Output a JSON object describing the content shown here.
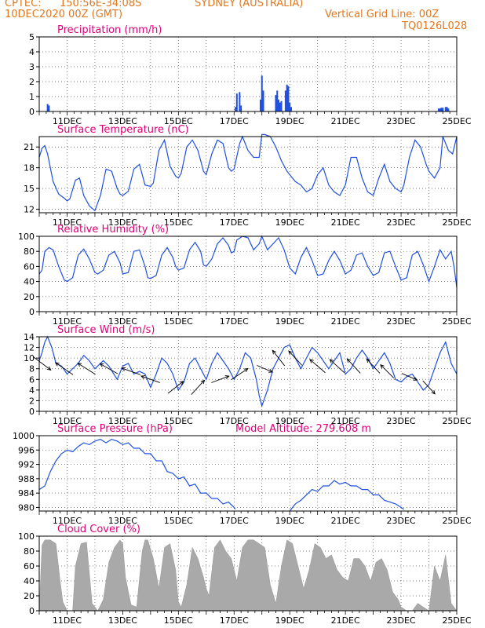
{
  "header": {
    "source": "CPTEC:",
    "coords": "150:56E-34:08S",
    "location": "SYDNEY (AUSTRALIA)",
    "date": "10DEC2020 00Z (GMT)",
    "grid_note": "Vertical Grid Line: 00Z",
    "code": "TQ0126L028"
  },
  "model_altitude": "Model Altitude: 279.608 m",
  "colors": {
    "header": "#e07820",
    "title": "#e0007a",
    "series": "#1f4fe0",
    "cloud": "#a9a9a9"
  },
  "x_ticks": [
    "11DEC",
    "13DEC",
    "15DEC",
    "17DEC",
    "19DEC",
    "21DEC",
    "23DEC",
    "25DEC"
  ],
  "chart_data": [
    {
      "type": "bar",
      "title": "Precipitation (mm/h)",
      "ylim": [
        0,
        5
      ],
      "yticks": [
        0,
        1,
        2,
        3,
        4,
        5
      ],
      "xlim": [
        10.0,
        25.0
      ],
      "x": [
        10.3,
        10.35,
        17.05,
        17.1,
        17.2,
        17.25,
        17.95,
        18.0,
        18.05,
        18.5,
        18.55,
        18.6,
        18.65,
        18.7,
        18.85,
        18.9,
        18.95,
        19.0,
        19.05,
        24.35,
        24.4,
        24.45,
        24.5,
        24.6,
        24.65,
        24.7
      ],
      "values": [
        0.5,
        0.4,
        0.3,
        1.2,
        1.3,
        0.4,
        0.8,
        2.4,
        1.4,
        1.1,
        1.4,
        0.8,
        0.6,
        0.7,
        1.4,
        1.8,
        1.7,
        0.6,
        0.3,
        0.2,
        0.2,
        0.25,
        0.25,
        0.3,
        0.3,
        0.2
      ],
      "grid": true
    },
    {
      "type": "line",
      "title": "Surface Temperature (nC)",
      "ylim": [
        11.5,
        22.5
      ],
      "yticks": [
        12,
        15,
        18,
        21
      ],
      "xlim": [
        10.0,
        25.0
      ],
      "x": [
        10.0,
        10.1,
        10.2,
        10.3,
        10.5,
        10.7,
        10.9,
        11.0,
        11.1,
        11.3,
        11.45,
        11.6,
        11.8,
        12.0,
        12.2,
        12.4,
        12.6,
        12.8,
        12.9,
        13.0,
        13.2,
        13.4,
        13.6,
        13.8,
        14.0,
        14.1,
        14.3,
        14.5,
        14.7,
        14.9,
        15.0,
        15.1,
        15.3,
        15.5,
        15.7,
        15.9,
        16.0,
        16.2,
        16.4,
        16.6,
        16.8,
        16.9,
        17.0,
        17.2,
        17.3,
        17.5,
        17.7,
        17.9,
        18.0,
        18.1,
        18.3,
        18.5,
        18.7,
        18.9,
        19.0,
        19.2,
        19.4,
        19.6,
        19.8,
        20.0,
        20.2,
        20.4,
        20.6,
        20.8,
        21.0,
        21.2,
        21.4,
        21.6,
        21.8,
        22.0,
        22.2,
        22.4,
        22.6,
        22.8,
        23.0,
        23.1,
        23.3,
        23.5,
        23.7,
        23.9,
        24.0,
        24.2,
        24.4,
        24.5,
        24.7,
        24.85,
        25.0
      ],
      "y": [
        19.5,
        20.8,
        21.2,
        20.0,
        16.0,
        14.2,
        13.6,
        13.2,
        13.5,
        16.2,
        16.5,
        14.0,
        12.5,
        11.8,
        14.0,
        17.8,
        17.5,
        15.0,
        14.2,
        14.0,
        14.6,
        17.8,
        18.5,
        15.5,
        15.3,
        15.8,
        20.5,
        22.0,
        18.2,
        16.8,
        16.5,
        17.2,
        21.0,
        22.0,
        20.5,
        17.5,
        17.0,
        20.0,
        22.0,
        21.5,
        18.0,
        17.5,
        17.8,
        21.5,
        22.5,
        20.5,
        19.5,
        19.5,
        22.8,
        22.8,
        22.5,
        21.0,
        19.0,
        17.5,
        17.0,
        16.0,
        15.5,
        14.5,
        15.0,
        17.0,
        18.0,
        15.5,
        14.5,
        14.0,
        15.5,
        19.5,
        19.5,
        16.5,
        14.5,
        14.0,
        16.5,
        18.5,
        16.0,
        15.0,
        14.5,
        15.5,
        19.5,
        22.0,
        21.0,
        18.5,
        17.5,
        16.5,
        18.0,
        22.5,
        20.5,
        20.0,
        22.5
      ],
      "grid": true
    },
    {
      "type": "line",
      "title": "Relative Humidity (%)",
      "ylim": [
        0,
        100
      ],
      "yticks": [
        0,
        20,
        40,
        60,
        80,
        100
      ],
      "xlim": [
        10.0,
        25.0
      ],
      "x": [
        10.0,
        10.1,
        10.2,
        10.35,
        10.5,
        10.7,
        10.9,
        11.0,
        11.2,
        11.4,
        11.6,
        11.8,
        12.0,
        12.1,
        12.3,
        12.5,
        12.7,
        12.9,
        13.0,
        13.2,
        13.4,
        13.6,
        13.8,
        13.9,
        14.0,
        14.2,
        14.4,
        14.6,
        14.8,
        14.9,
        15.0,
        15.2,
        15.4,
        15.6,
        15.8,
        15.9,
        16.0,
        16.2,
        16.4,
        16.6,
        16.8,
        16.9,
        17.0,
        17.1,
        17.3,
        17.5,
        17.7,
        17.9,
        18.0,
        18.2,
        18.4,
        18.6,
        18.8,
        19.0,
        19.2,
        19.4,
        19.6,
        19.8,
        20.0,
        20.2,
        20.4,
        20.6,
        20.8,
        21.0,
        21.2,
        21.4,
        21.6,
        21.8,
        22.0,
        22.2,
        22.4,
        22.6,
        22.8,
        23.0,
        23.2,
        23.4,
        23.6,
        23.8,
        24.0,
        24.2,
        24.4,
        24.6,
        24.8,
        24.9,
        25.0
      ],
      "y": [
        50,
        55,
        80,
        85,
        82,
        60,
        42,
        40,
        45,
        75,
        83,
        70,
        52,
        50,
        55,
        75,
        80,
        65,
        50,
        52,
        80,
        82,
        60,
        45,
        44,
        48,
        75,
        85,
        72,
        60,
        55,
        58,
        82,
        92,
        80,
        62,
        60,
        70,
        90,
        98,
        88,
        78,
        80,
        95,
        100,
        98,
        82,
        90,
        100,
        82,
        90,
        98,
        82,
        58,
        50,
        72,
        85,
        68,
        48,
        50,
        68,
        80,
        68,
        50,
        55,
        75,
        78,
        60,
        48,
        52,
        78,
        80,
        60,
        42,
        45,
        75,
        80,
        62,
        40,
        60,
        82,
        70,
        80,
        60,
        32
      ],
      "grid": true
    },
    {
      "type": "line",
      "title": "Surface Wind (m/s)",
      "ylim": [
        0,
        14
      ],
      "yticks": [
        0,
        2,
        4,
        6,
        8,
        10,
        12,
        14
      ],
      "xlim": [
        10.0,
        25.0
      ],
      "x": [
        10.0,
        10.1,
        10.2,
        10.3,
        10.45,
        10.6,
        10.8,
        11.0,
        11.2,
        11.4,
        11.6,
        11.8,
        12.0,
        12.3,
        12.5,
        12.8,
        13.0,
        13.2,
        13.4,
        13.6,
        13.8,
        14.0,
        14.2,
        14.4,
        14.6,
        14.8,
        15.0,
        15.2,
        15.4,
        15.6,
        15.8,
        16.0,
        16.2,
        16.4,
        16.6,
        16.8,
        17.0,
        17.2,
        17.4,
        17.6,
        17.8,
        17.9,
        18.0,
        18.2,
        18.4,
        18.6,
        18.8,
        19.0,
        19.2,
        19.4,
        19.6,
        19.8,
        20.0,
        20.2,
        20.4,
        20.6,
        20.8,
        21.0,
        21.2,
        21.4,
        21.6,
        21.8,
        22.0,
        22.2,
        22.4,
        22.6,
        22.8,
        23.0,
        23.2,
        23.4,
        23.6,
        23.8,
        24.0,
        24.2,
        24.4,
        24.6,
        24.8,
        25.0
      ],
      "y": [
        9.5,
        11.0,
        13.0,
        14.0,
        12.0,
        9.0,
        8.5,
        7.0,
        8.0,
        9.0,
        10.5,
        9.5,
        8.0,
        9.5,
        8.5,
        6.0,
        8.5,
        9.0,
        7.0,
        7.5,
        7.0,
        4.5,
        7.0,
        10.0,
        9.0,
        7.0,
        4.0,
        5.5,
        9.0,
        10.0,
        8.0,
        6.0,
        9.0,
        11.0,
        9.5,
        8.0,
        6.0,
        8.0,
        11.0,
        10.0,
        6.0,
        3.0,
        1.0,
        4.0,
        8.0,
        10.0,
        12.0,
        12.5,
        10.0,
        8.0,
        10.0,
        12.0,
        11.0,
        9.5,
        8.0,
        9.5,
        11.0,
        7.0,
        8.0,
        10.0,
        11.5,
        10.0,
        8.0,
        9.5,
        11.0,
        9.0,
        6.0,
        5.5,
        6.5,
        7.0,
        5.5,
        4.0,
        5.0,
        8.0,
        11.0,
        13.0,
        9.0,
        7.0
      ],
      "vectors": [
        {
          "x": 10.1,
          "y": 9.0,
          "u": 0.8,
          "v": -0.6
        },
        {
          "x": 10.9,
          "y": 8.0,
          "u": -0.8,
          "v": 0.55
        },
        {
          "x": 11.7,
          "y": 8.0,
          "u": -0.8,
          "v": 0.5
        },
        {
          "x": 12.5,
          "y": 8.0,
          "u": -0.8,
          "v": 0.45
        },
        {
          "x": 13.3,
          "y": 7.5,
          "u": -0.85,
          "v": 0.3
        },
        {
          "x": 14.0,
          "y": 6.0,
          "u": -0.85,
          "v": 0.3
        },
        {
          "x": 14.9,
          "y": 4.5,
          "u": 0.7,
          "v": 0.55
        },
        {
          "x": 15.7,
          "y": 4.5,
          "u": 0.6,
          "v": 0.65
        },
        {
          "x": 16.5,
          "y": 6.0,
          "u": 0.8,
          "v": 0.3
        },
        {
          "x": 17.2,
          "y": 7.0,
          "u": 0.75,
          "v": 0.5
        },
        {
          "x": 18.1,
          "y": 8.0,
          "u": 0.7,
          "v": -0.3
        },
        {
          "x": 18.6,
          "y": 10.0,
          "u": -0.55,
          "v": 0.7
        },
        {
          "x": 19.2,
          "y": 10.0,
          "u": -0.6,
          "v": 0.65
        },
        {
          "x": 20.0,
          "y": 8.5,
          "u": -0.7,
          "v": 0.6
        },
        {
          "x": 20.7,
          "y": 8.5,
          "u": -0.65,
          "v": 0.6
        },
        {
          "x": 21.3,
          "y": 8.5,
          "u": -0.6,
          "v": 0.65
        },
        {
          "x": 22.0,
          "y": 8.5,
          "u": -0.6,
          "v": 0.65
        },
        {
          "x": 22.5,
          "y": 7.5,
          "u": -0.6,
          "v": 0.6
        },
        {
          "x": 23.3,
          "y": 6.5,
          "u": 0.7,
          "v": -0.3
        },
        {
          "x": 24.0,
          "y": 4.5,
          "u": 0.55,
          "v": -0.6
        }
      ],
      "grid": true
    },
    {
      "type": "line",
      "title": "Surface Pressure (hPa)",
      "ylim": [
        979,
        1000
      ],
      "yticks": [
        980,
        984,
        988,
        992,
        996,
        1000
      ],
      "xlim": [
        10.0,
        25.0
      ],
      "x": [
        10.0,
        10.2,
        10.4,
        10.6,
        10.8,
        11.0,
        11.2,
        11.4,
        11.6,
        11.8,
        12.0,
        12.2,
        12.4,
        12.6,
        12.8,
        13.0,
        13.2,
        13.4,
        13.6,
        13.8,
        14.0,
        14.2,
        14.4,
        14.6,
        14.8,
        15.0,
        15.2,
        15.4,
        15.6,
        15.8,
        16.0,
        16.2,
        16.4,
        16.6,
        16.8,
        17.0,
        17.05
      ],
      "y": [
        985.0,
        986.0,
        990.0,
        993.0,
        995.0,
        996.0,
        995.5,
        997.0,
        998.0,
        997.5,
        998.5,
        999.0,
        998.0,
        999.0,
        998.5,
        997.5,
        998.0,
        996.5,
        996.5,
        995.0,
        995.0,
        993.0,
        993.0,
        990.0,
        989.5,
        988.0,
        988.5,
        986.0,
        986.5,
        984.0,
        984.0,
        982.5,
        982.5,
        981.0,
        981.5,
        980.0,
        979.5
      ],
      "x2": [
        19.0,
        19.2,
        19.4,
        19.6,
        19.8,
        20.0,
        20.2,
        20.4,
        20.6,
        20.8,
        21.0,
        21.2,
        21.4,
        21.6,
        21.8,
        22.0,
        22.2,
        22.4,
        22.6,
        22.8,
        23.0,
        23.1
      ],
      "y2": [
        979.0,
        981.0,
        982.0,
        983.5,
        985.0,
        984.5,
        986.0,
        986.0,
        987.5,
        986.5,
        987.0,
        986.0,
        986.0,
        985.0,
        985.0,
        983.5,
        983.5,
        982.0,
        981.5,
        981.0,
        980.0,
        979.5
      ],
      "grid": true
    },
    {
      "type": "area",
      "title": "Cloud Cover (%)",
      "ylim": [
        0,
        100
      ],
      "yticks": [
        0,
        20,
        40,
        60,
        80,
        100
      ],
      "xlim": [
        10.0,
        25.0
      ],
      "x": [
        10.0,
        10.1,
        10.2,
        10.4,
        10.6,
        10.75,
        10.85,
        11.0,
        11.2,
        11.3,
        11.5,
        11.7,
        11.9,
        12.1,
        12.3,
        12.5,
        12.7,
        12.9,
        13.0,
        13.1,
        13.3,
        13.5,
        13.7,
        13.8,
        13.9,
        14.1,
        14.3,
        14.5,
        14.7,
        14.9,
        15.0,
        15.1,
        15.3,
        15.5,
        15.7,
        15.9,
        16.0,
        16.1,
        16.3,
        16.5,
        16.7,
        16.9,
        17.1,
        17.3,
        17.5,
        17.7,
        17.9,
        18.1,
        18.3,
        18.5,
        18.7,
        18.9,
        19.1,
        19.3,
        19.5,
        19.7,
        19.9,
        20.1,
        20.3,
        20.5,
        20.7,
        20.9,
        21.1,
        21.3,
        21.5,
        21.7,
        21.9,
        22.1,
        22.3,
        22.5,
        22.7,
        22.9,
        23.0,
        23.2,
        23.4,
        23.6,
        23.8,
        24.0,
        24.2,
        24.4,
        24.6,
        24.8,
        25.0
      ],
      "y": [
        0,
        88,
        95,
        95,
        90,
        40,
        12,
        0,
        0,
        60,
        90,
        92,
        10,
        0,
        15,
        65,
        85,
        95,
        90,
        45,
        8,
        5,
        80,
        95,
        95,
        70,
        30,
        85,
        90,
        55,
        12,
        5,
        35,
        85,
        70,
        45,
        30,
        20,
        85,
        95,
        80,
        70,
        40,
        85,
        95,
        95,
        90,
        85,
        35,
        10,
        60,
        95,
        90,
        60,
        30,
        55,
        90,
        85,
        70,
        75,
        55,
        45,
        40,
        70,
        70,
        60,
        40,
        65,
        70,
        55,
        25,
        15,
        5,
        0,
        0,
        10,
        5,
        0,
        60,
        40,
        75,
        10,
        0
      ],
      "grid": true
    }
  ]
}
